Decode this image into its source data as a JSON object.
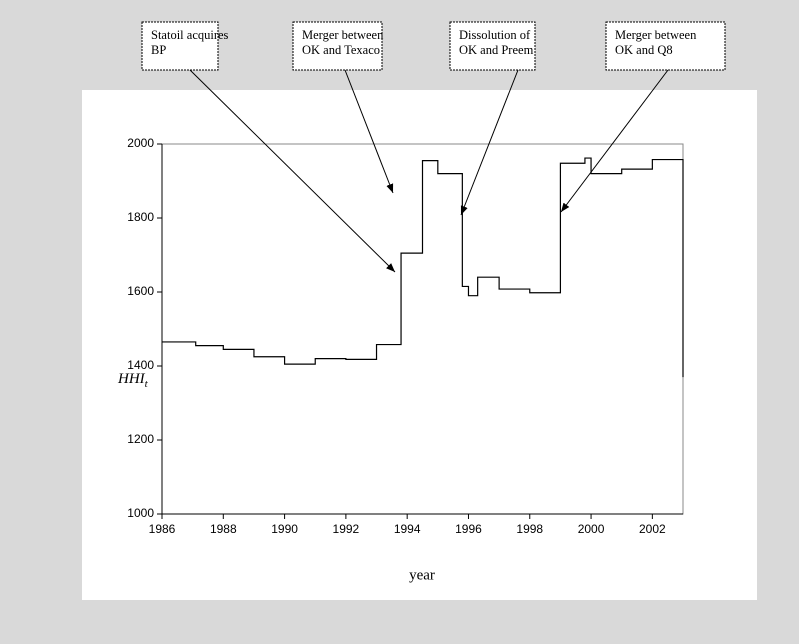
{
  "chart_data": {
    "type": "line",
    "step": "post",
    "y_label": "HHI",
    "y_label_sub": "t",
    "x_label": "year",
    "x": [
      1986,
      1987.1,
      1988,
      1989,
      1990,
      1991,
      1992,
      1993,
      1993.8,
      1994.5,
      1995,
      1995.8,
      1996,
      1996.3,
      1997,
      1998,
      1999,
      1999.8,
      2000,
      2001,
      2002,
      2003
    ],
    "series": [
      {
        "color": "#000000",
        "values": [
          1465,
          1455,
          1445,
          1425,
          1405,
          1420,
          1418,
          1458,
          1705,
          1955,
          1920,
          1615,
          1590,
          1640,
          1608,
          1598,
          1948,
          1962,
          1920,
          1932,
          1958,
          1370
        ]
      }
    ],
    "xlim": [
      1986,
      2003
    ],
    "xticks": [
      1986,
      1988,
      1990,
      1992,
      1994,
      1996,
      1998,
      2000,
      2002
    ],
    "ylim": [
      1000,
      2000
    ],
    "yticks": [
      1000,
      1200,
      1400,
      1600,
      1800,
      2000
    ],
    "annotations": [
      {
        "lines": [
          "Statoil acquires",
          "BP"
        ]
      },
      {
        "lines": [
          "Merger between",
          "OK and Texaco"
        ]
      },
      {
        "lines": [
          "Dissolution of",
          "OK and Preem"
        ]
      },
      {
        "lines": [
          "Merger between",
          "OK and Q8"
        ]
      }
    ]
  }
}
